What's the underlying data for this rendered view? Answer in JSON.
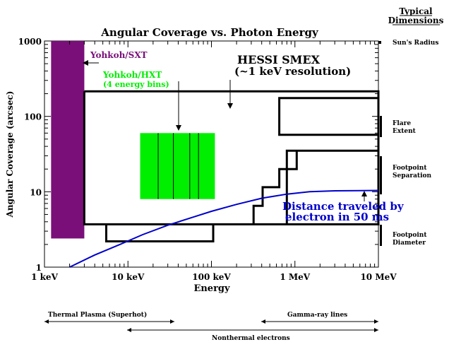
{
  "chart_data": {
    "type": "line",
    "title": "Angular Coverage vs. Photon Energy",
    "xlabel": "Energy",
    "ylabel": "Angular Coverage (arcsec)",
    "x_scale": "log",
    "y_scale": "log",
    "xlim": [
      1,
      10000
    ],
    "ylim": [
      1,
      1000
    ],
    "x_tick_labels": [
      {
        "value": 1,
        "label": "1 keV"
      },
      {
        "value": 10,
        "label": "10 keV"
      },
      {
        "value": 100,
        "label": "100 keV"
      },
      {
        "value": 1000,
        "label": "1 MeV"
      },
      {
        "value": 10000,
        "label": "10 MeV"
      }
    ],
    "y_tick_labels": [
      {
        "value": 1,
        "label": "1"
      },
      {
        "value": 10,
        "label": "10"
      },
      {
        "value": 100,
        "label": "100"
      },
      {
        "value": 1000,
        "label": "1000"
      }
    ],
    "regions": {
      "sxt": {
        "label": "Yohkoh/SXT",
        "color": "#7a0f7a",
        "x": [
          1.2,
          3.0
        ],
        "y": [
          2.4,
          1000
        ]
      },
      "hxt": {
        "label": "Yohkoh/HXT",
        "sublabel": "(4 energy bins)",
        "color": "#00ee00",
        "x": [
          14,
          110
        ],
        "y": [
          8,
          60
        ],
        "bin_edges": [
          14,
          23,
          35,
          55,
          70,
          110
        ]
      }
    },
    "series": [
      {
        "label": "HESSI SMEX",
        "sublabel": "(~1 keV resolution)",
        "color": "#000000",
        "points": [
          [
            3,
            215
          ],
          [
            10000,
            215
          ],
          [
            10000,
            3.7
          ],
          [
            800,
            3.7
          ],
          [
            800,
            35
          ],
          [
            10000,
            35
          ],
          [
            10000,
            57
          ],
          [
            650,
            57
          ],
          [
            650,
            175
          ],
          [
            10000,
            175
          ],
          [
            10000,
            215
          ],
          [
            10000,
            3.7
          ],
          [
            3,
            3.7
          ],
          [
            3,
            215
          ],
          [
            3,
            3.7
          ],
          [
            5.5,
            3.7
          ],
          [
            5.5,
            2.2
          ],
          [
            105,
            2.2
          ],
          [
            105,
            3.7
          ],
          [
            320,
            3.7
          ],
          [
            320,
            6.5
          ],
          [
            410,
            6.5
          ],
          [
            410,
            11.5
          ],
          [
            650,
            11.5
          ],
          [
            650,
            20
          ],
          [
            1050,
            20
          ],
          [
            1050,
            35
          ],
          [
            10000,
            35
          ]
        ]
      },
      {
        "label": "Distance traveled by",
        "sublabel": "electron in 50 ms",
        "color": "#0000cc",
        "points": [
          [
            2.0,
            1.0
          ],
          [
            4,
            1.45
          ],
          [
            8,
            2.0
          ],
          [
            15,
            2.7
          ],
          [
            30,
            3.6
          ],
          [
            60,
            4.6
          ],
          [
            100,
            5.5
          ],
          [
            200,
            6.8
          ],
          [
            400,
            8.2
          ],
          [
            800,
            9.3
          ],
          [
            1500,
            10.0
          ],
          [
            3000,
            10.3
          ],
          [
            10000,
            10.4
          ]
        ]
      }
    ],
    "annotations": {
      "dimensions_header_1": "Typical",
      "dimensions_header_2": "Dimensions",
      "suns_radius": "Sun's Radius",
      "flare_1": "Flare",
      "flare_2": "Extent",
      "footpoint_sep_1": "Footpoint",
      "footpoint_sep_2": "Separation",
      "footpoint_dia_1": "Footpoint",
      "footpoint_dia_2": "Diameter",
      "thermal": "Thermal Plasma   (Superhot)",
      "gamma": "Gamma-ray lines",
      "nonthermal": "Nonthermal electrons"
    }
  }
}
